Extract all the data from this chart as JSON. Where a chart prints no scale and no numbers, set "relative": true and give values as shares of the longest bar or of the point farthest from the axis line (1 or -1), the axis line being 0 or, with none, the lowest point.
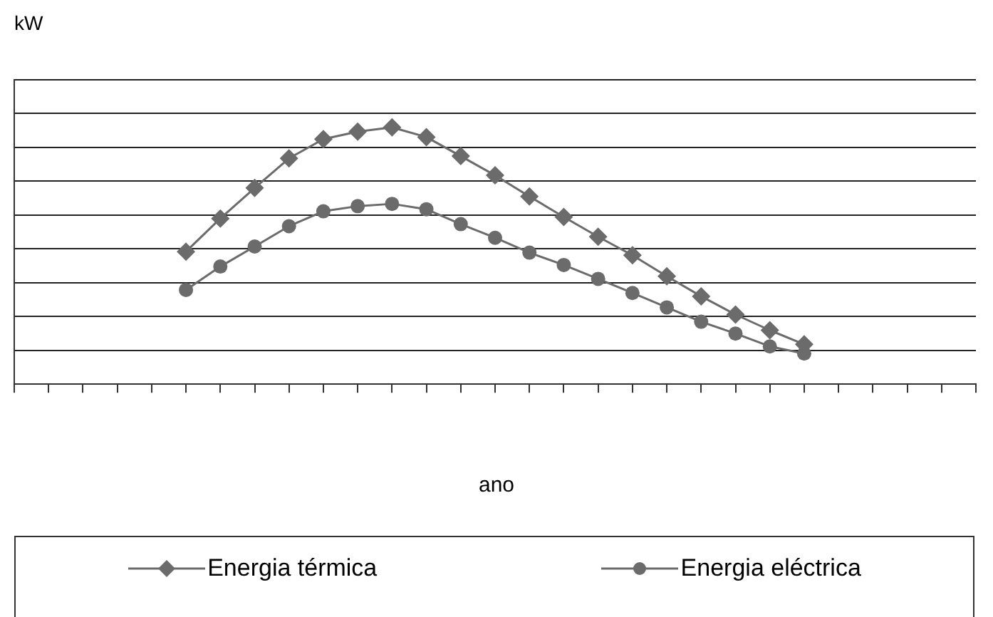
{
  "chart_data": {
    "type": "line",
    "ylabel": "kW",
    "xlabel": "ano",
    "relative": true,
    "grid": "y",
    "legend": "bottom",
    "line_style": "solid",
    "categories": [
      null,
      null,
      null,
      null,
      null,
      null,
      null,
      null,
      null,
      null,
      null,
      null,
      null,
      null,
      null,
      null,
      null,
      null,
      null,
      null,
      null,
      null,
      null,
      null,
      null,
      null,
      null,
      null,
      null
    ],
    "series": [
      {
        "name": "Energia térmica",
        "color": "#6b6b6b",
        "marker": "diamond",
        "values": [
          null,
          null,
          null,
          null,
          null,
          0.516,
          0.645,
          0.764,
          0.879,
          0.954,
          0.983,
          1,
          0.962,
          0.888,
          0.813,
          0.731,
          0.651,
          0.574,
          0.502,
          0.42,
          0.342,
          0.271,
          0.21,
          0.155,
          null,
          null,
          null,
          null,
          null
        ]
      },
      {
        "name": "Energia eléctrica",
        "color": "#6b6b6b",
        "marker": "circle",
        "values": [
          null,
          null,
          null,
          null,
          null,
          0.367,
          0.458,
          0.536,
          0.615,
          0.673,
          0.693,
          0.702,
          0.681,
          0.623,
          0.57,
          0.512,
          0.464,
          0.41,
          0.355,
          0.299,
          0.243,
          0.197,
          0.147,
          0.119,
          null,
          null,
          null,
          null,
          null
        ]
      }
    ]
  }
}
